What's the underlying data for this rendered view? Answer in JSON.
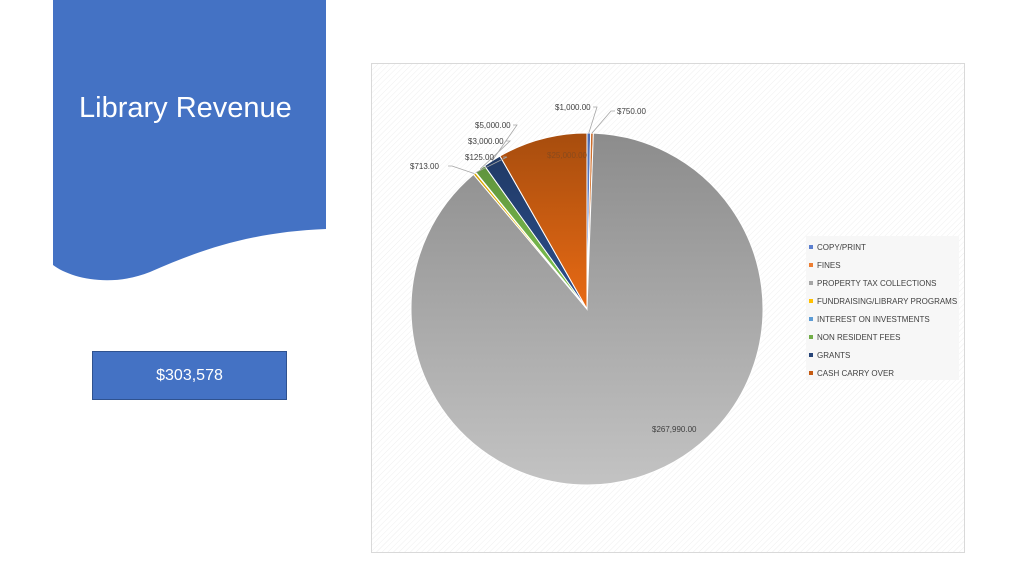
{
  "slide": {
    "title": "Library Revenue",
    "total": "$303,578"
  },
  "colors": {
    "accent": "#4472c4"
  },
  "chart_data": {
    "type": "pie",
    "title": "",
    "legend_position": "right",
    "slices": [
      {
        "name": "COPY/PRINT",
        "value": 1000,
        "label": "$1,000.00",
        "color": "#5b7fcf"
      },
      {
        "name": "FINES",
        "value": 750,
        "label": "$750.00",
        "color": "#ed7d31"
      },
      {
        "name": "PROPERTY TAX COLLECTIONS",
        "value": 267990,
        "label": "$267,990.00",
        "color": "#a5a5a5"
      },
      {
        "name": "FUNDRAISING/LIBRARY PROGRAMS",
        "value": 713,
        "label": "$713.00",
        "color": "#ffc000"
      },
      {
        "name": "INTEREST ON INVESTMENTS",
        "value": 125,
        "label": "$125.00",
        "color": "#5b9bd5"
      },
      {
        "name": "NON RESIDENT FEES",
        "value": 3000,
        "label": "$3,000.00",
        "color": "#70ad47"
      },
      {
        "name": "GRANTS",
        "value": 5000,
        "label": "$5,000.00",
        "color": "#264478"
      },
      {
        "name": "CASH CARRY OVER",
        "value": 25000,
        "label": "$25,000.00",
        "color": "#c55a11"
      }
    ]
  }
}
